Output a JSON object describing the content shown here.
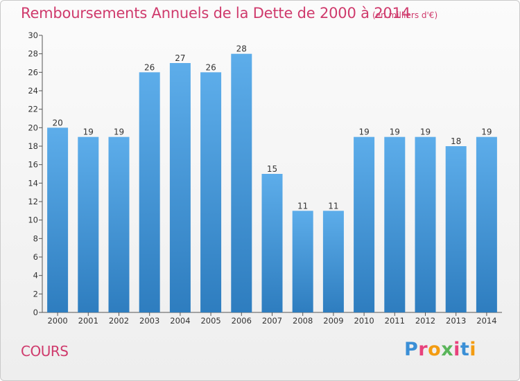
{
  "header": {
    "title": "Remboursements Annuels de la Dette de 2000 à 2014",
    "unit": "(en milliers d'€)"
  },
  "commune": "COURS",
  "logo": {
    "text": "Proxiti",
    "letter_colors": [
      "#3a8fd6",
      "#e8427c",
      "#f39c12",
      "#5ab55a",
      "#e8427c",
      "#3a8fd6",
      "#f39c12"
    ]
  },
  "colors": {
    "bar_top": "#5dadea",
    "bar_bottom": "#2e7dbf",
    "text_accent": "#cf3a6c"
  },
  "chart_data": {
    "type": "bar",
    "title": "Remboursements Annuels de la Dette de 2000 à 2014",
    "xlabel": "",
    "ylabel": "",
    "categories": [
      "2000",
      "2001",
      "2002",
      "2003",
      "2004",
      "2005",
      "2006",
      "2007",
      "2008",
      "2009",
      "2010",
      "2011",
      "2012",
      "2013",
      "2014"
    ],
    "values": [
      20,
      19,
      19,
      26,
      27,
      26,
      28,
      15,
      11,
      11,
      19,
      19,
      19,
      18,
      19
    ],
    "ylim": [
      0,
      30
    ],
    "yticks": [
      0,
      2,
      4,
      6,
      8,
      10,
      12,
      14,
      16,
      18,
      20,
      22,
      24,
      26,
      28,
      30
    ],
    "grid": false,
    "legend": "none",
    "data_labels": true
  }
}
